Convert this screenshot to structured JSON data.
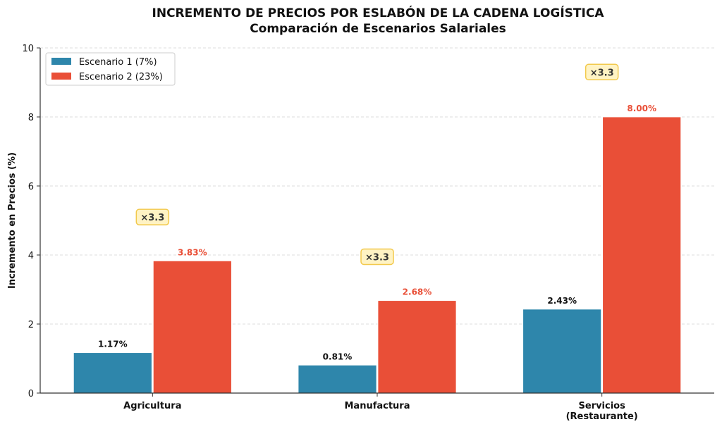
{
  "chart_data": {
    "type": "bar",
    "title": "INCREMENTO DE PRECIOS POR ESLABÓN DE LA CADENA LOGÍSTICA",
    "subtitle": "Comparación de Escenarios Salariales",
    "xlabel": "",
    "ylabel": "Incremento en Precios (%)",
    "ylim": [
      0,
      10
    ],
    "yticks": [
      "0",
      "2",
      "4",
      "6",
      "8",
      "10"
    ],
    "grid": true,
    "legend_position": "top-left",
    "categories": [
      [
        "Agricultura"
      ],
      [
        "Manufactura"
      ],
      [
        "Servicios",
        "(Restaurante)"
      ]
    ],
    "series": [
      {
        "name": "Escenario 1 (7%)",
        "color": "#2e86ab",
        "label_color": "#111111",
        "values": [
          1.17,
          0.81,
          2.43
        ],
        "labels": [
          "1.17%",
          "0.81%",
          "2.43%"
        ]
      },
      {
        "name": "Escenario 2 (23%)",
        "color": "#e94f37",
        "label_color": "#e94f37",
        "values": [
          3.83,
          2.68,
          8.0
        ],
        "labels": [
          "3.83%",
          "2.68%",
          "8.00%"
        ]
      }
    ],
    "annotations": [
      {
        "text": "×3.3",
        "category": 0,
        "y": 5.1
      },
      {
        "text": "×3.3",
        "category": 1,
        "y": 3.95
      },
      {
        "text": "×3.3",
        "category": 2,
        "y": 9.3
      }
    ],
    "annotation_style": {
      "fill": "#fff3c4",
      "stroke": "#f2c94c"
    }
  }
}
